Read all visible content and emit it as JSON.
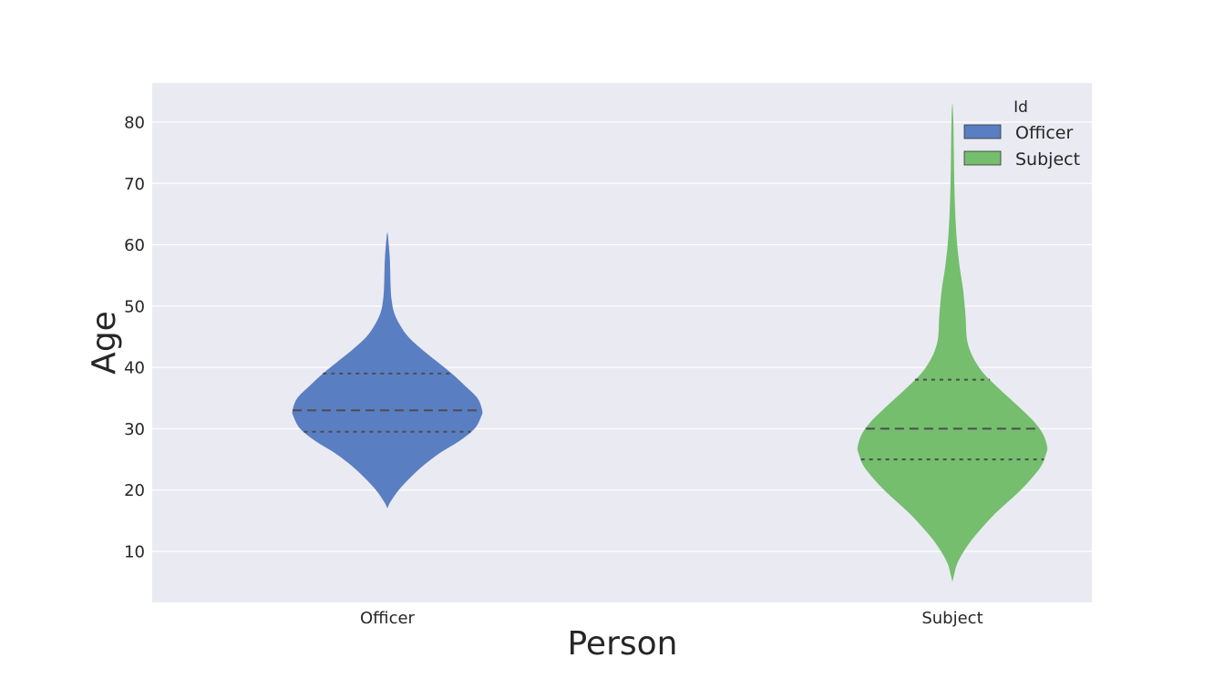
{
  "chart_data": {
    "type": "violin",
    "xlabel": "Person",
    "ylabel": "Age",
    "categories": [
      "Officer",
      "Subject"
    ],
    "ylim": [
      1.5,
      86
    ],
    "yticks": [
      10,
      20,
      30,
      40,
      50,
      60,
      70,
      80
    ],
    "grid": true,
    "legend": {
      "title": "Id",
      "placement": "top-right",
      "entries": [
        "Officer",
        "Subject"
      ]
    },
    "colors": {
      "Officer": "#5a7ec2",
      "Subject": "#74be6e",
      "background": "#eaeaf2",
      "grid": "#ffffff",
      "quartile_line": "#4d4d4d"
    },
    "series": [
      {
        "name": "Officer",
        "category": "Officer",
        "min": 17,
        "max": 62,
        "q1": 29.5,
        "median": 33,
        "q3": 39,
        "density_profile": [
          [
            17,
            0.0
          ],
          [
            18,
            0.03
          ],
          [
            20,
            0.12
          ],
          [
            22,
            0.24
          ],
          [
            24,
            0.38
          ],
          [
            26,
            0.55
          ],
          [
            28,
            0.76
          ],
          [
            30,
            0.92
          ],
          [
            32,
            0.99
          ],
          [
            33,
            1.0
          ],
          [
            35,
            0.95
          ],
          [
            37,
            0.82
          ],
          [
            39,
            0.68
          ],
          [
            41,
            0.52
          ],
          [
            43,
            0.36
          ],
          [
            45,
            0.22
          ],
          [
            47,
            0.13
          ],
          [
            49,
            0.07
          ],
          [
            51,
            0.045
          ],
          [
            53,
            0.035
          ],
          [
            56,
            0.03
          ],
          [
            58,
            0.025
          ],
          [
            60,
            0.015
          ],
          [
            62,
            0.0
          ]
        ]
      },
      {
        "name": "Subject",
        "category": "Subject",
        "min": 5,
        "max": 83,
        "q1": 25,
        "median": 30,
        "q3": 38,
        "density_profile": [
          [
            5,
            0.0
          ],
          [
            6,
            0.015
          ],
          [
            8,
            0.05
          ],
          [
            10,
            0.12
          ],
          [
            12,
            0.21
          ],
          [
            14,
            0.32
          ],
          [
            16,
            0.44
          ],
          [
            18,
            0.58
          ],
          [
            20,
            0.72
          ],
          [
            22,
            0.84
          ],
          [
            24,
            0.94
          ],
          [
            26,
            0.99
          ],
          [
            27,
            1.0
          ],
          [
            29,
            0.96
          ],
          [
            31,
            0.87
          ],
          [
            33,
            0.74
          ],
          [
            35,
            0.6
          ],
          [
            37,
            0.46
          ],
          [
            39,
            0.33
          ],
          [
            41,
            0.24
          ],
          [
            43,
            0.18
          ],
          [
            45,
            0.15
          ],
          [
            48,
            0.14
          ],
          [
            50,
            0.13
          ],
          [
            53,
            0.11
          ],
          [
            56,
            0.08
          ],
          [
            60,
            0.05
          ],
          [
            65,
            0.03
          ],
          [
            70,
            0.02
          ],
          [
            75,
            0.015
          ],
          [
            80,
            0.01
          ],
          [
            83,
            0.0
          ]
        ]
      }
    ]
  }
}
